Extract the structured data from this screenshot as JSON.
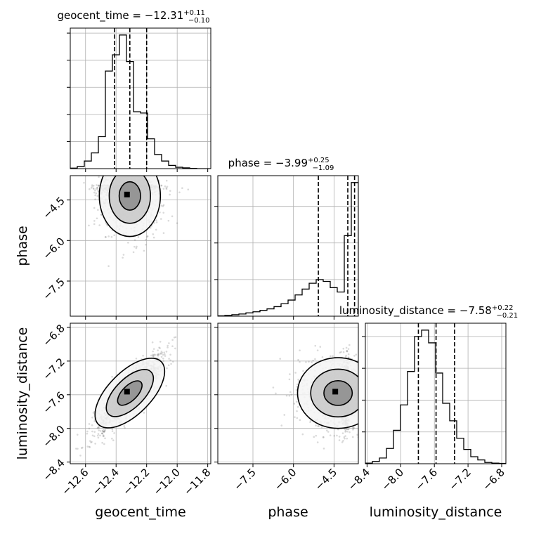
{
  "chart_data": {
    "type": "corner",
    "parameters": [
      "geocent_time",
      "phase",
      "luminosity_distance"
    ],
    "titles": [
      {
        "param": "geocent_time",
        "median": "−12.31",
        "plus": "+0.11",
        "minus": "−0.10"
      },
      {
        "param": "phase",
        "median": "−3.99",
        "plus": "+0.25",
        "minus": "−1.09"
      },
      {
        "param": "luminosity_distance",
        "median": "−7.58",
        "plus": "+0.22",
        "minus": "−0.21"
      }
    ],
    "ranges": {
      "geocent_time": [
        -12.7,
        -11.78
      ],
      "phase": [
        -8.8,
        -3.6
      ],
      "luminosity_distance": [
        -8.42,
        -6.75
      ]
    },
    "ticks": {
      "geocent_time": [
        -12.6,
        -12.4,
        -12.2,
        -12.0,
        -11.8
      ],
      "phase": [
        -7.5,
        -6.0,
        -4.5
      ],
      "luminosity_distance": [
        -8.4,
        -8.0,
        -7.6,
        -7.2,
        -6.8
      ]
    },
    "tick_labels": {
      "geocent_time": [
        "−12.6",
        "−12.4",
        "−12.2",
        "−12.0",
        "−11.8"
      ],
      "phase": [
        "−7.5",
        "−6.0",
        "−4.5"
      ],
      "luminosity_distance": [
        "−8.4",
        "−8.0",
        "−7.6",
        "−7.2",
        "−6.8"
      ]
    },
    "quantiles": {
      "geocent_time": [
        -12.41,
        -12.31,
        -12.2
      ],
      "phase": [
        -5.08,
        -3.99,
        -3.74
      ],
      "luminosity_distance": [
        -7.79,
        -7.58,
        -7.36
      ]
    },
    "histograms": {
      "geocent_time": {
        "edges": [
          -12.7,
          -12.654,
          -12.608,
          -12.562,
          -12.516,
          -12.47,
          -12.424,
          -12.378,
          -12.332,
          -12.286,
          -12.24,
          -12.194,
          -12.148,
          -12.102,
          -12.056,
          -12.01,
          -11.964,
          -11.918,
          -11.872,
          -11.826,
          -11.78
        ],
        "counts": [
          2,
          8,
          28,
          58,
          118,
          360,
          420,
          493,
          395,
          210,
          205,
          110,
          52,
          28,
          12,
          5,
          3,
          1,
          0,
          0
        ]
      },
      "phase": {
        "edges": [
          -8.8,
          -8.54,
          -8.28,
          -8.02,
          -7.76,
          -7.5,
          -7.24,
          -6.98,
          -6.72,
          -6.46,
          -6.2,
          -5.94,
          -5.68,
          -5.42,
          -5.16,
          -4.9,
          -4.64,
          -4.38,
          -4.12,
          -3.86,
          -3.6
        ],
        "counts": [
          1,
          2,
          4,
          6,
          9,
          12,
          16,
          20,
          26,
          34,
          44,
          58,
          74,
          90,
          100,
          95,
          78,
          66,
          220,
          365
        ]
      },
      "luminosity_distance": {
        "edges": [
          -8.42,
          -8.3365,
          -8.253,
          -8.1695,
          -8.086,
          -8.0025,
          -7.919,
          -7.8355,
          -7.752,
          -7.6685,
          -7.585,
          -7.5015,
          -7.418,
          -7.3345,
          -7.251,
          -7.1675,
          -7.084,
          -7.0005,
          -6.917,
          -6.8335,
          -6.75
        ],
        "counts": [
          2,
          7,
          18,
          48,
          105,
          185,
          290,
          400,
          420,
          380,
          285,
          190,
          135,
          80,
          45,
          22,
          12,
          4,
          2,
          1
        ]
      }
    },
    "pairs": [
      {
        "x": "geocent_time",
        "y": "phase",
        "mean": [
          -12.31,
          -4.35
        ],
        "sd": [
          0.1,
          0.75
        ],
        "rho": -0.1
      },
      {
        "x": "geocent_time",
        "y": "luminosity_distance",
        "mean": [
          -12.31,
          -7.58
        ],
        "sd": [
          0.1,
          0.21
        ],
        "rho": 0.85
      },
      {
        "x": "phase",
        "y": "luminosity_distance",
        "mean": [
          -4.35,
          -7.58
        ],
        "sd": [
          0.75,
          0.21
        ],
        "rho": 0.0
      }
    ],
    "grid": true,
    "legend": "none"
  }
}
